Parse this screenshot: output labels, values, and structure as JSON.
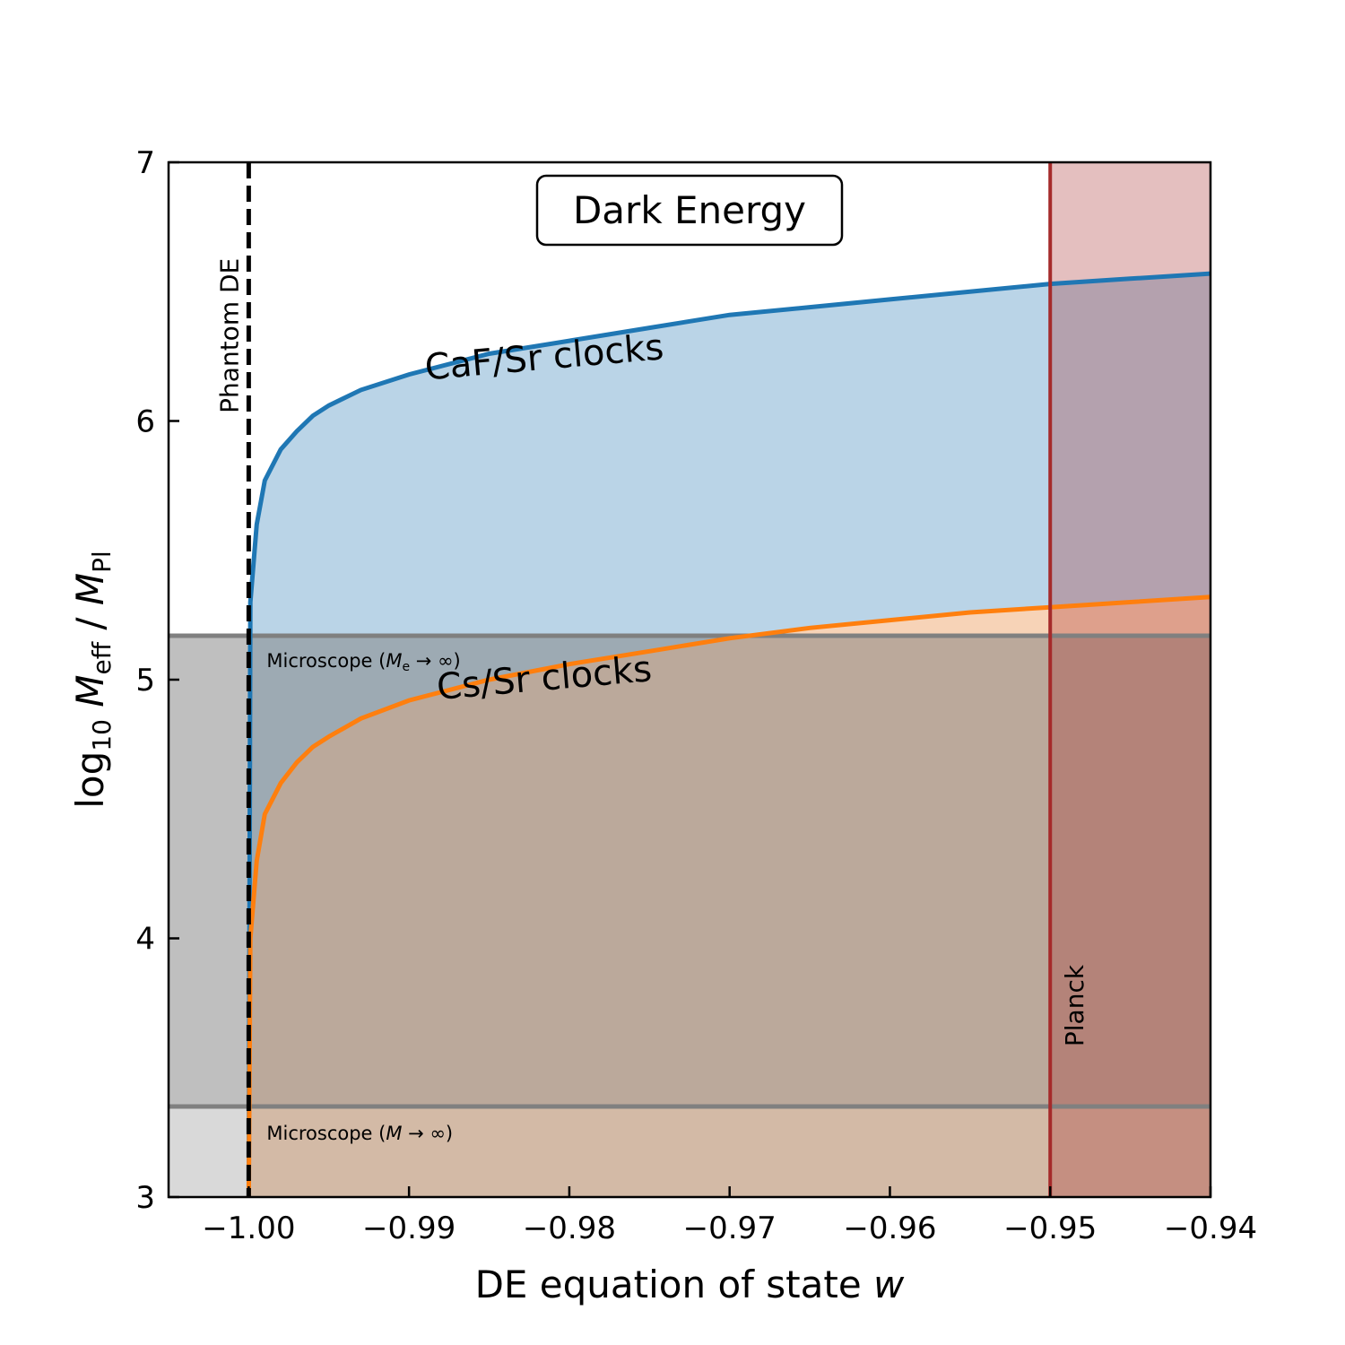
{
  "chart_data": {
    "type": "line",
    "title": "Dark Energy",
    "xlabel": "DE equation of state w",
    "ylabel": "log10 Meff / MPl",
    "xlim": [
      -1.005,
      -0.94
    ],
    "ylim": [
      3,
      7
    ],
    "x_ticks": [
      -1.0,
      -0.99,
      -0.98,
      -0.97,
      -0.96,
      -0.95,
      -0.94
    ],
    "x_tick_labels": [
      "−1.00",
      "−0.99",
      "−0.98",
      "−0.97",
      "−0.96",
      "−0.95",
      "−0.94"
    ],
    "y_ticks": [
      3,
      4,
      5,
      6,
      7
    ],
    "y_tick_labels": [
      "3",
      "4",
      "5",
      "6",
      "7"
    ],
    "grid": false,
    "series": [
      {
        "name": "CaF/Sr clocks",
        "color": "#1f77b4",
        "fill_color": "#bad4e7",
        "x": [
          -1.0,
          -0.9999,
          -0.9995,
          -0.999,
          -0.998,
          -0.997,
          -0.996,
          -0.995,
          -0.993,
          -0.99,
          -0.985,
          -0.98,
          -0.975,
          -0.97,
          -0.965,
          -0.96,
          -0.955,
          -0.95,
          -0.945,
          -0.94
        ],
        "y": [
          3.0,
          5.3,
          5.6,
          5.77,
          5.89,
          5.96,
          6.02,
          6.06,
          6.12,
          6.18,
          6.26,
          6.31,
          6.36,
          6.41,
          6.44,
          6.47,
          6.5,
          6.53,
          6.55,
          6.57
        ]
      },
      {
        "name": "Cs/Sr clocks",
        "color": "#ff7f0e",
        "fill_color": "#f7d3b7",
        "x": [
          -1.0,
          -0.9999,
          -0.9995,
          -0.999,
          -0.998,
          -0.997,
          -0.996,
          -0.995,
          -0.993,
          -0.99,
          -0.985,
          -0.98,
          -0.975,
          -0.97,
          -0.965,
          -0.96,
          -0.955,
          -0.95,
          -0.945,
          -0.94
        ],
        "y": [
          3.0,
          4.0,
          4.3,
          4.48,
          4.6,
          4.68,
          4.74,
          4.78,
          4.85,
          4.92,
          5.0,
          5.06,
          5.11,
          5.16,
          5.2,
          5.23,
          5.26,
          5.28,
          5.3,
          5.32
        ]
      }
    ],
    "reference_lines": {
      "phantom_x": -1.0,
      "phantom_label": "Phantom DE",
      "planck_x": -0.95,
      "planck_label": "Planck",
      "planck_color": "#a52a2a",
      "microscope_upper_y": 5.17,
      "microscope_upper_label_pre": "Microscope (",
      "microscope_upper_label_M": "M",
      "microscope_upper_label_sub": "e",
      "microscope_upper_label_post": " → ∞)",
      "microscope_lower_y": 3.35,
      "microscope_lower_label_pre": "Microscope (",
      "microscope_lower_label_M": "M",
      "microscope_lower_label_post": " → ∞)"
    },
    "curve_labels": {
      "caf": {
        "text": "CaF/Sr clocks",
        "x": -0.9815,
        "y": 6.2
      },
      "cs": {
        "text": "Cs/Sr clocks",
        "x": -0.9815,
        "y": 4.96
      }
    }
  }
}
